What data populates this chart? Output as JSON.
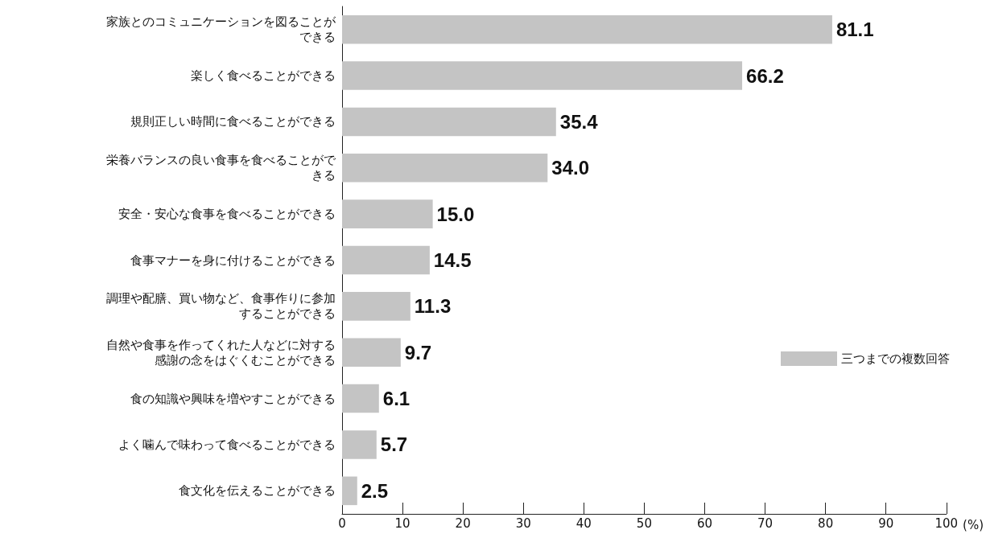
{
  "chart_data": {
    "type": "bar",
    "orientation": "horizontal",
    "categories": [
      "家族とのコミュニケーションを図ることができる",
      "楽しく食べることができる",
      "規則正しい時間に食べることができる",
      "栄養バランスの良い食事を食べることができる",
      "安全・安心な食事を食べることができる",
      "食事マナーを身に付けることができる",
      "調理や配膳、買い物など、食事作りに参加することができる",
      "自然や食事を作ってくれた人などに対する感謝の念をはぐくむことができる",
      "食の知識や興味を増やすことができる",
      "よく噛んで味わって食べることができる",
      "食文化を伝えることができる"
    ],
    "series": [
      {
        "name": "三つまでの複数回答",
        "color": "#c4c4c4",
        "values": [
          81.1,
          66.2,
          35.4,
          34.0,
          15.0,
          14.5,
          11.3,
          9.7,
          6.1,
          5.7,
          2.5
        ],
        "value_labels": [
          "81.1",
          "66.2",
          "35.4",
          "34.0",
          "15.0",
          "14.5",
          "11.3",
          "9.7",
          "6.1",
          "5.7",
          "2.5"
        ]
      }
    ],
    "xlabel": "(%)",
    "xlim": [
      0,
      100
    ],
    "xticks": [
      0,
      10,
      20,
      30,
      40,
      50,
      60,
      70,
      80,
      90,
      100
    ],
    "legend": "right",
    "grid": false
  }
}
